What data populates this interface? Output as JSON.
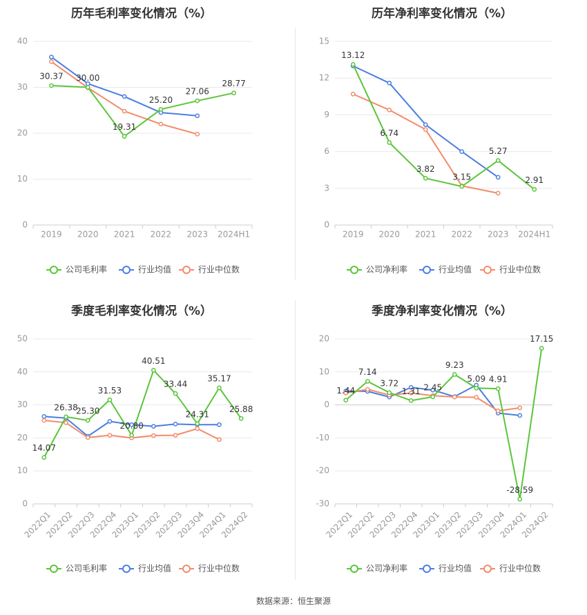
{
  "colors": {
    "company": "#5ac53a",
    "industry_avg": "#4a7ee0",
    "industry_median": "#f28b6a",
    "grid": "#e8e8e8",
    "axis_text": "#999999",
    "title_text": "#333333",
    "label_text": "#333333"
  },
  "source": "数据来源：恒生聚源",
  "chart_data": [
    {
      "type": "line",
      "title": "历年毛利率变化情况（%）",
      "categories": [
        "2019",
        "2020",
        "2021",
        "2022",
        "2023",
        "2024H1"
      ],
      "ylim": [
        0,
        40
      ],
      "yticks": [
        0,
        10,
        20,
        30,
        40
      ],
      "grid": true,
      "legend_position": "bottom",
      "series": [
        {
          "name": "公司毛利率",
          "key": "company",
          "values": [
            30.37,
            30.0,
            19.31,
            25.2,
            27.06,
            28.77
          ],
          "labels": [
            "30.37",
            "30.00",
            "19.31",
            "25.20",
            "27.06",
            "28.77"
          ]
        },
        {
          "name": "行业均值",
          "key": "industry_avg",
          "values": [
            36.6,
            30.8,
            28.0,
            24.5,
            23.8,
            null
          ]
        },
        {
          "name": "行业中位数",
          "key": "industry_median",
          "values": [
            35.6,
            29.9,
            24.8,
            22.0,
            19.8,
            null
          ]
        }
      ]
    },
    {
      "type": "line",
      "title": "历年净利率变化情况（%）",
      "categories": [
        "2019",
        "2020",
        "2021",
        "2022",
        "2023",
        "2024H1"
      ],
      "ylim": [
        0,
        15
      ],
      "yticks": [
        0,
        3,
        6,
        9,
        12,
        15
      ],
      "grid": true,
      "legend_position": "bottom",
      "series": [
        {
          "name": "公司净利率",
          "key": "company",
          "values": [
            13.12,
            6.74,
            3.82,
            3.15,
            5.27,
            2.91
          ],
          "labels": [
            "13.12",
            "6.74",
            "3.82",
            "3.15",
            "5.27",
            "2.91"
          ]
        },
        {
          "name": "行业均值",
          "key": "industry_avg",
          "values": [
            13.0,
            11.6,
            8.2,
            6.0,
            3.9,
            null
          ]
        },
        {
          "name": "行业中位数",
          "key": "industry_median",
          "values": [
            10.7,
            9.4,
            7.8,
            3.2,
            2.6,
            null
          ]
        }
      ]
    },
    {
      "type": "line",
      "title": "季度毛利率变化情况（%）",
      "categories": [
        "2022Q1",
        "2022Q2",
        "2022Q3",
        "2022Q4",
        "2023Q1",
        "2023Q2",
        "2023Q3",
        "2023Q4",
        "2024Q1",
        "2024Q2"
      ],
      "ylim": [
        0,
        50
      ],
      "yticks": [
        0,
        10,
        20,
        30,
        40,
        50
      ],
      "grid": true,
      "legend_position": "bottom",
      "series": [
        {
          "name": "公司毛利率",
          "key": "company",
          "values": [
            14.07,
            26.38,
            25.3,
            31.53,
            20.8,
            40.51,
            33.44,
            24.31,
            35.17,
            25.88
          ],
          "labels": [
            "14.07",
            "26.38",
            "25.30",
            "31.53",
            "20.80",
            "40.51",
            "33.44",
            "24.31",
            "35.17",
            "25.88"
          ]
        },
        {
          "name": "行业均值",
          "key": "industry_avg",
          "values": [
            26.5,
            26.0,
            20.5,
            25.0,
            24.0,
            23.5,
            24.2,
            24.0,
            24.0,
            null
          ]
        },
        {
          "name": "行业中位数",
          "key": "industry_median",
          "values": [
            25.3,
            24.6,
            20.1,
            20.8,
            20.0,
            20.7,
            20.8,
            22.8,
            19.5,
            null
          ]
        }
      ]
    },
    {
      "type": "line",
      "title": "季度净利率变化情况（%）",
      "categories": [
        "2022Q1",
        "2022Q2",
        "2022Q3",
        "2022Q4",
        "2023Q1",
        "2023Q2",
        "2023Q3",
        "2023Q4",
        "2024Q1",
        "2024Q2"
      ],
      "ylim": [
        -30,
        20
      ],
      "yticks": [
        -30,
        -20,
        -10,
        0,
        10,
        20
      ],
      "grid": true,
      "legend_position": "bottom",
      "series": [
        {
          "name": "公司净利率",
          "key": "company",
          "values": [
            1.44,
            7.14,
            3.72,
            1.31,
            2.45,
            9.23,
            5.09,
            4.91,
            -28.59,
            17.15
          ],
          "labels": [
            "1.44",
            "7.14",
            "3.72",
            "1.31",
            "2.45",
            "9.23",
            "5.09",
            "4.91",
            "-28.59",
            "17.15"
          ]
        },
        {
          "name": "行业均值",
          "key": "industry_avg",
          "values": [
            4.2,
            4.1,
            2.4,
            5.3,
            4.5,
            2.5,
            6.0,
            -2.5,
            -3.2,
            null
          ]
        },
        {
          "name": "行业中位数",
          "key": "industry_median",
          "values": [
            3.6,
            4.7,
            3.0,
            3.6,
            2.8,
            2.4,
            2.3,
            -1.8,
            -0.9,
            null
          ]
        }
      ]
    }
  ]
}
